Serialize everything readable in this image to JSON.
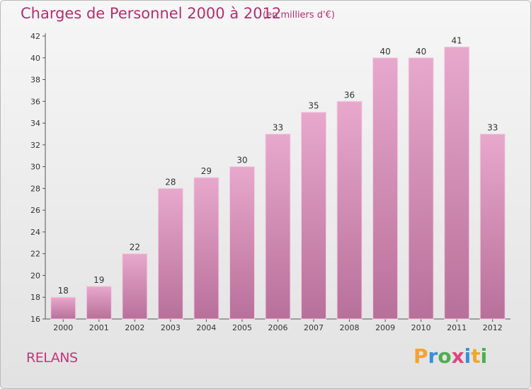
{
  "header": {
    "title": "Charges de Personnel 2000 à 2012",
    "subtitle": "(en milliers d'€)"
  },
  "commune": "RELANS",
  "logo": {
    "letters": [
      "P",
      "r",
      "o",
      "x",
      "i",
      "t",
      "i"
    ],
    "colors": [
      "#f5a623",
      "#3a8fd8",
      "#4caf50",
      "#e0457b",
      "#3a8fd8",
      "#f5a623",
      "#4caf50"
    ]
  },
  "chart_data": {
    "type": "bar",
    "categories": [
      "2000",
      "2001",
      "2002",
      "2003",
      "2004",
      "2005",
      "2006",
      "2007",
      "2008",
      "2009",
      "2010",
      "2011",
      "2012"
    ],
    "values": [
      18,
      19,
      22,
      28,
      29,
      30,
      33,
      35,
      36,
      40,
      40,
      41,
      33
    ],
    "ylim": [
      16,
      42
    ],
    "yticks": [
      16,
      18,
      20,
      22,
      24,
      26,
      28,
      30,
      32,
      34,
      36,
      38,
      40,
      42
    ],
    "grid": false,
    "bar_color_top": "#e8a8cc",
    "bar_color_bottom": "#b8709a"
  }
}
